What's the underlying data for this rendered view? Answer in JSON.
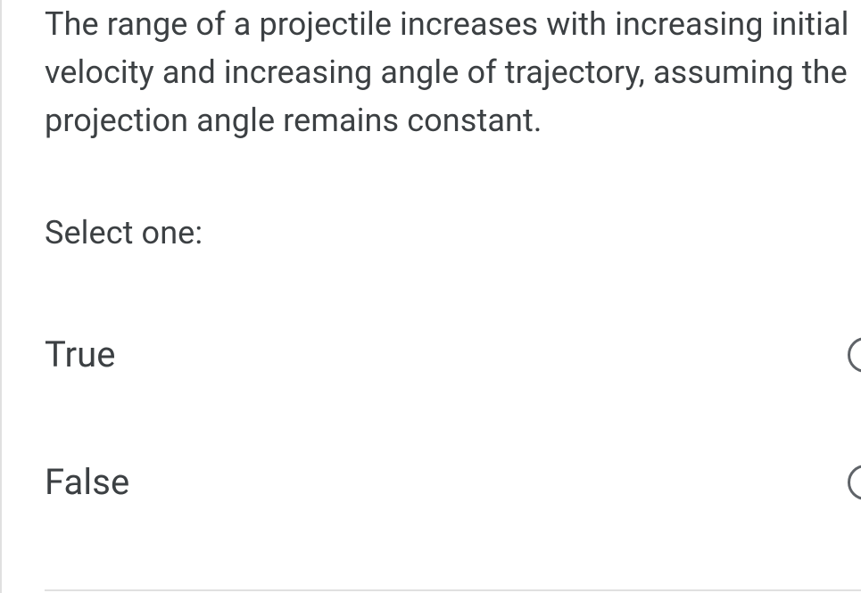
{
  "question": {
    "text": "The range of a projectile increases with increasing initial velocity and increasing angle of trajectory, assuming the projection angle remains constant.",
    "prompt": "Select one:"
  },
  "options": [
    {
      "label": "True"
    },
    {
      "label": "False"
    }
  ],
  "colors": {
    "text": "#3c4043",
    "border": "#e0e0e0",
    "radio_border": "#5f6368",
    "background": "#ffffff"
  },
  "typography": {
    "question_fontsize": 36,
    "option_fontsize": 40,
    "line_height": 1.5,
    "font_family": "Roboto, Helvetica Neue, Arial, sans-serif"
  }
}
